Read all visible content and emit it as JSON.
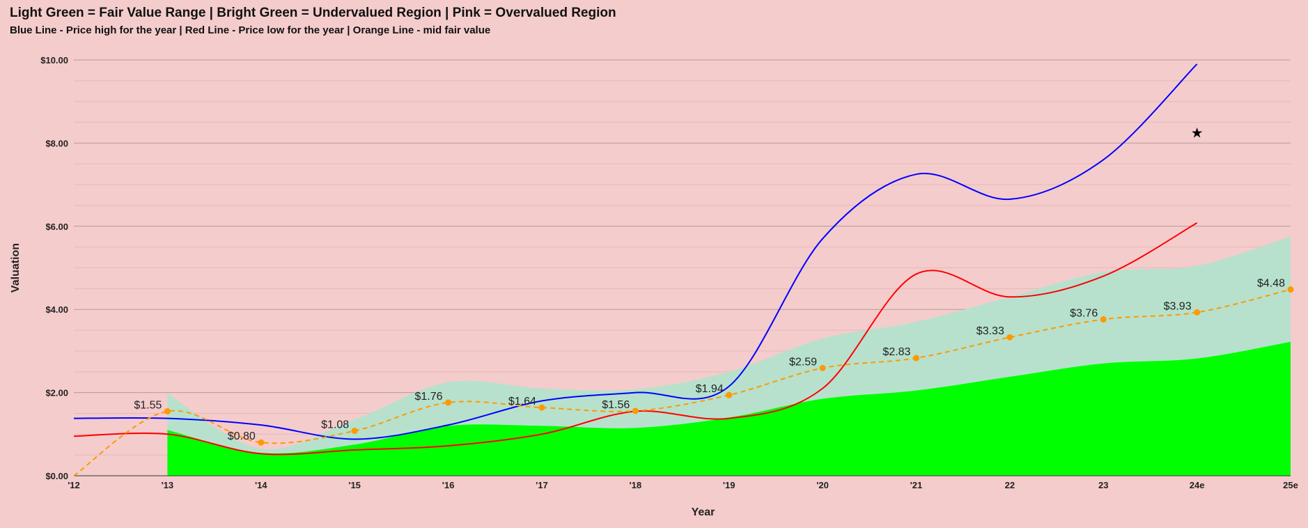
{
  "chart_data": {
    "type": "area",
    "title": "Light Green = Fair Value Range | Bright Green = Undervalued Region | Pink = Overvalued Region",
    "subtitle": "Blue Line - Price high for the year | Red Line - Price low for the year | Orange Line - mid fair value",
    "xlabel": "Year",
    "ylabel": "Valuation",
    "ylim": [
      0,
      10
    ],
    "yticks": [
      "$0.00",
      "$2.00",
      "$4.00",
      "$6.00",
      "$8.00",
      "$10.00"
    ],
    "categories": [
      "'12",
      "'13",
      "'14",
      "'15",
      "'16",
      "'17",
      "'18",
      "'19",
      "'20",
      "'21",
      "22",
      "23",
      "24e",
      "25e"
    ],
    "grid": true,
    "legend": "none",
    "colors": {
      "background": "#f4cccc",
      "fair_value_band": "#b7e1cd",
      "undervalued": "#00ff00",
      "price_high": "#0000ff",
      "price_low": "#ff0000",
      "mid_fair_value": "#ff9900"
    },
    "series": [
      {
        "key": "undervalued_top",
        "values": [
          null,
          1.1,
          0.55,
          0.75,
          1.2,
          1.2,
          1.15,
          1.4,
          1.85,
          2.05,
          2.38,
          2.7,
          2.82,
          3.22
        ]
      },
      {
        "key": "fair_value_top",
        "values": [
          null,
          1.98,
          0.65,
          1.35,
          2.25,
          2.1,
          2.08,
          2.5,
          3.3,
          3.7,
          4.3,
          4.9,
          5.05,
          5.75
        ]
      },
      {
        "key": "price_high",
        "values": [
          1.38,
          1.38,
          1.22,
          0.88,
          1.22,
          1.8,
          2.0,
          2.15,
          5.7,
          7.25,
          6.65,
          7.6,
          9.9,
          null
        ]
      },
      {
        "key": "price_low",
        "values": [
          0.95,
          1.0,
          0.53,
          0.62,
          0.72,
          1.0,
          1.55,
          1.38,
          2.1,
          4.85,
          4.3,
          4.8,
          6.08,
          null
        ]
      },
      {
        "key": "mid_fair_value",
        "values": [
          0,
          1.55,
          0.8,
          1.08,
          1.76,
          1.64,
          1.56,
          1.94,
          2.59,
          2.83,
          3.33,
          3.76,
          3.93,
          4.48
        ]
      }
    ],
    "data_labels": [
      "",
      "$1.55",
      "$0.80",
      "$1.08",
      "$1.76",
      "$1.64",
      "$1.56",
      "$1.94",
      "$2.59",
      "$2.83",
      "$3.33",
      "$3.76",
      "$3.93",
      "$4.48"
    ],
    "annotations": [
      {
        "symbol": "★",
        "x": "24e",
        "y": 8.25
      }
    ]
  }
}
